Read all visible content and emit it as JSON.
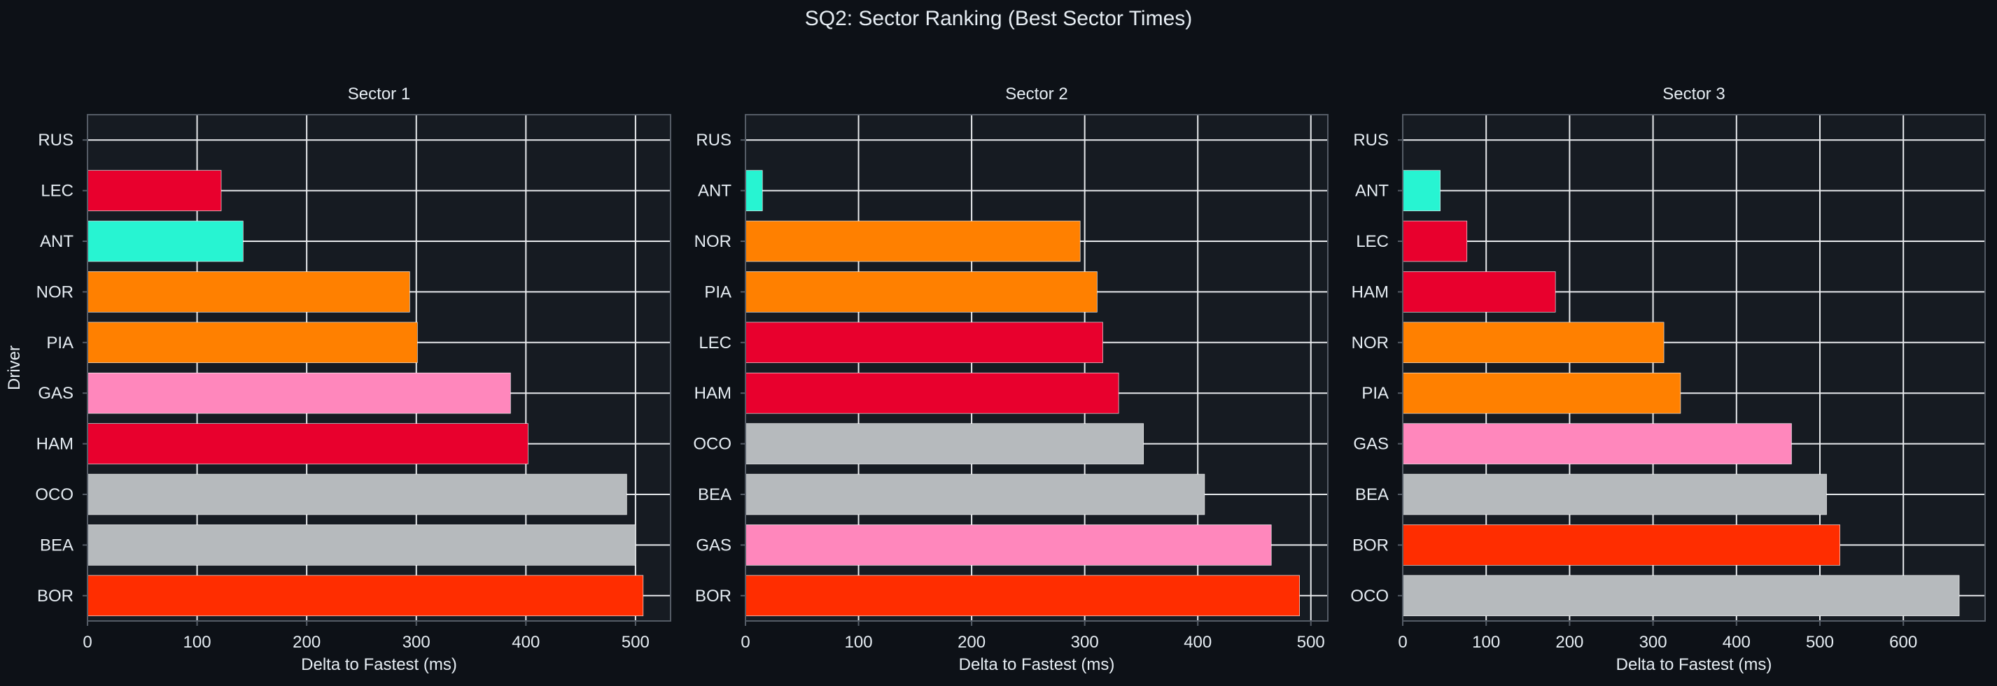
{
  "figure": {
    "title": "SQ2: Sector Ranking (Best Sector Times)"
  },
  "colors": {
    "background": "#0d1117",
    "axes_face": "#161b22",
    "spine": "#555c66",
    "grid": "#e8eaed",
    "text": "#e6edf3"
  },
  "chart_data": [
    {
      "type": "bar",
      "orientation": "horizontal",
      "title": "Sector 1",
      "xlabel": "Delta to Fastest (ms)",
      "ylabel": "Driver",
      "xlim": [
        0,
        532
      ],
      "xticks": [
        0,
        100,
        200,
        300,
        400,
        500
      ],
      "grid": true,
      "categories": [
        "RUS",
        "LEC",
        "ANT",
        "NOR",
        "PIA",
        "GAS",
        "HAM",
        "OCO",
        "BEA",
        "BOR"
      ],
      "values": [
        0,
        122,
        142,
        294,
        301,
        386,
        402,
        492,
        500,
        507
      ],
      "colors": [
        "#27f4d2",
        "#e8002d",
        "#27f4d2",
        "#ff8000",
        "#ff8000",
        "#ff87bc",
        "#e8002d",
        "#b6babd",
        "#b6babd",
        "#ff2d00"
      ]
    },
    {
      "type": "bar",
      "orientation": "horizontal",
      "title": "Sector 2",
      "xlabel": "Delta to Fastest (ms)",
      "ylabel": "",
      "xlim": [
        0,
        515
      ],
      "xticks": [
        0,
        100,
        200,
        300,
        400,
        500
      ],
      "grid": true,
      "categories": [
        "RUS",
        "ANT",
        "NOR",
        "PIA",
        "LEC",
        "HAM",
        "OCO",
        "BEA",
        "GAS",
        "BOR"
      ],
      "values": [
        0,
        15,
        296,
        311,
        316,
        330,
        352,
        406,
        465,
        490
      ],
      "colors": [
        "#27f4d2",
        "#27f4d2",
        "#ff8000",
        "#ff8000",
        "#e8002d",
        "#e8002d",
        "#b6babd",
        "#b6babd",
        "#ff87bc",
        "#ff2d00"
      ]
    },
    {
      "type": "bar",
      "orientation": "horizontal",
      "title": "Sector 3",
      "xlabel": "Delta to Fastest (ms)",
      "ylabel": "",
      "xlim": [
        0,
        698
      ],
      "xticks": [
        0,
        100,
        200,
        300,
        400,
        500,
        600
      ],
      "grid": true,
      "categories": [
        "RUS",
        "ANT",
        "LEC",
        "HAM",
        "NOR",
        "PIA",
        "GAS",
        "BEA",
        "BOR",
        "OCO"
      ],
      "values": [
        0,
        45,
        77,
        183,
        313,
        333,
        466,
        508,
        524,
        667
      ],
      "colors": [
        "#27f4d2",
        "#27f4d2",
        "#e8002d",
        "#e8002d",
        "#ff8000",
        "#ff8000",
        "#ff87bc",
        "#b6babd",
        "#ff2d00",
        "#b6babd"
      ]
    }
  ]
}
